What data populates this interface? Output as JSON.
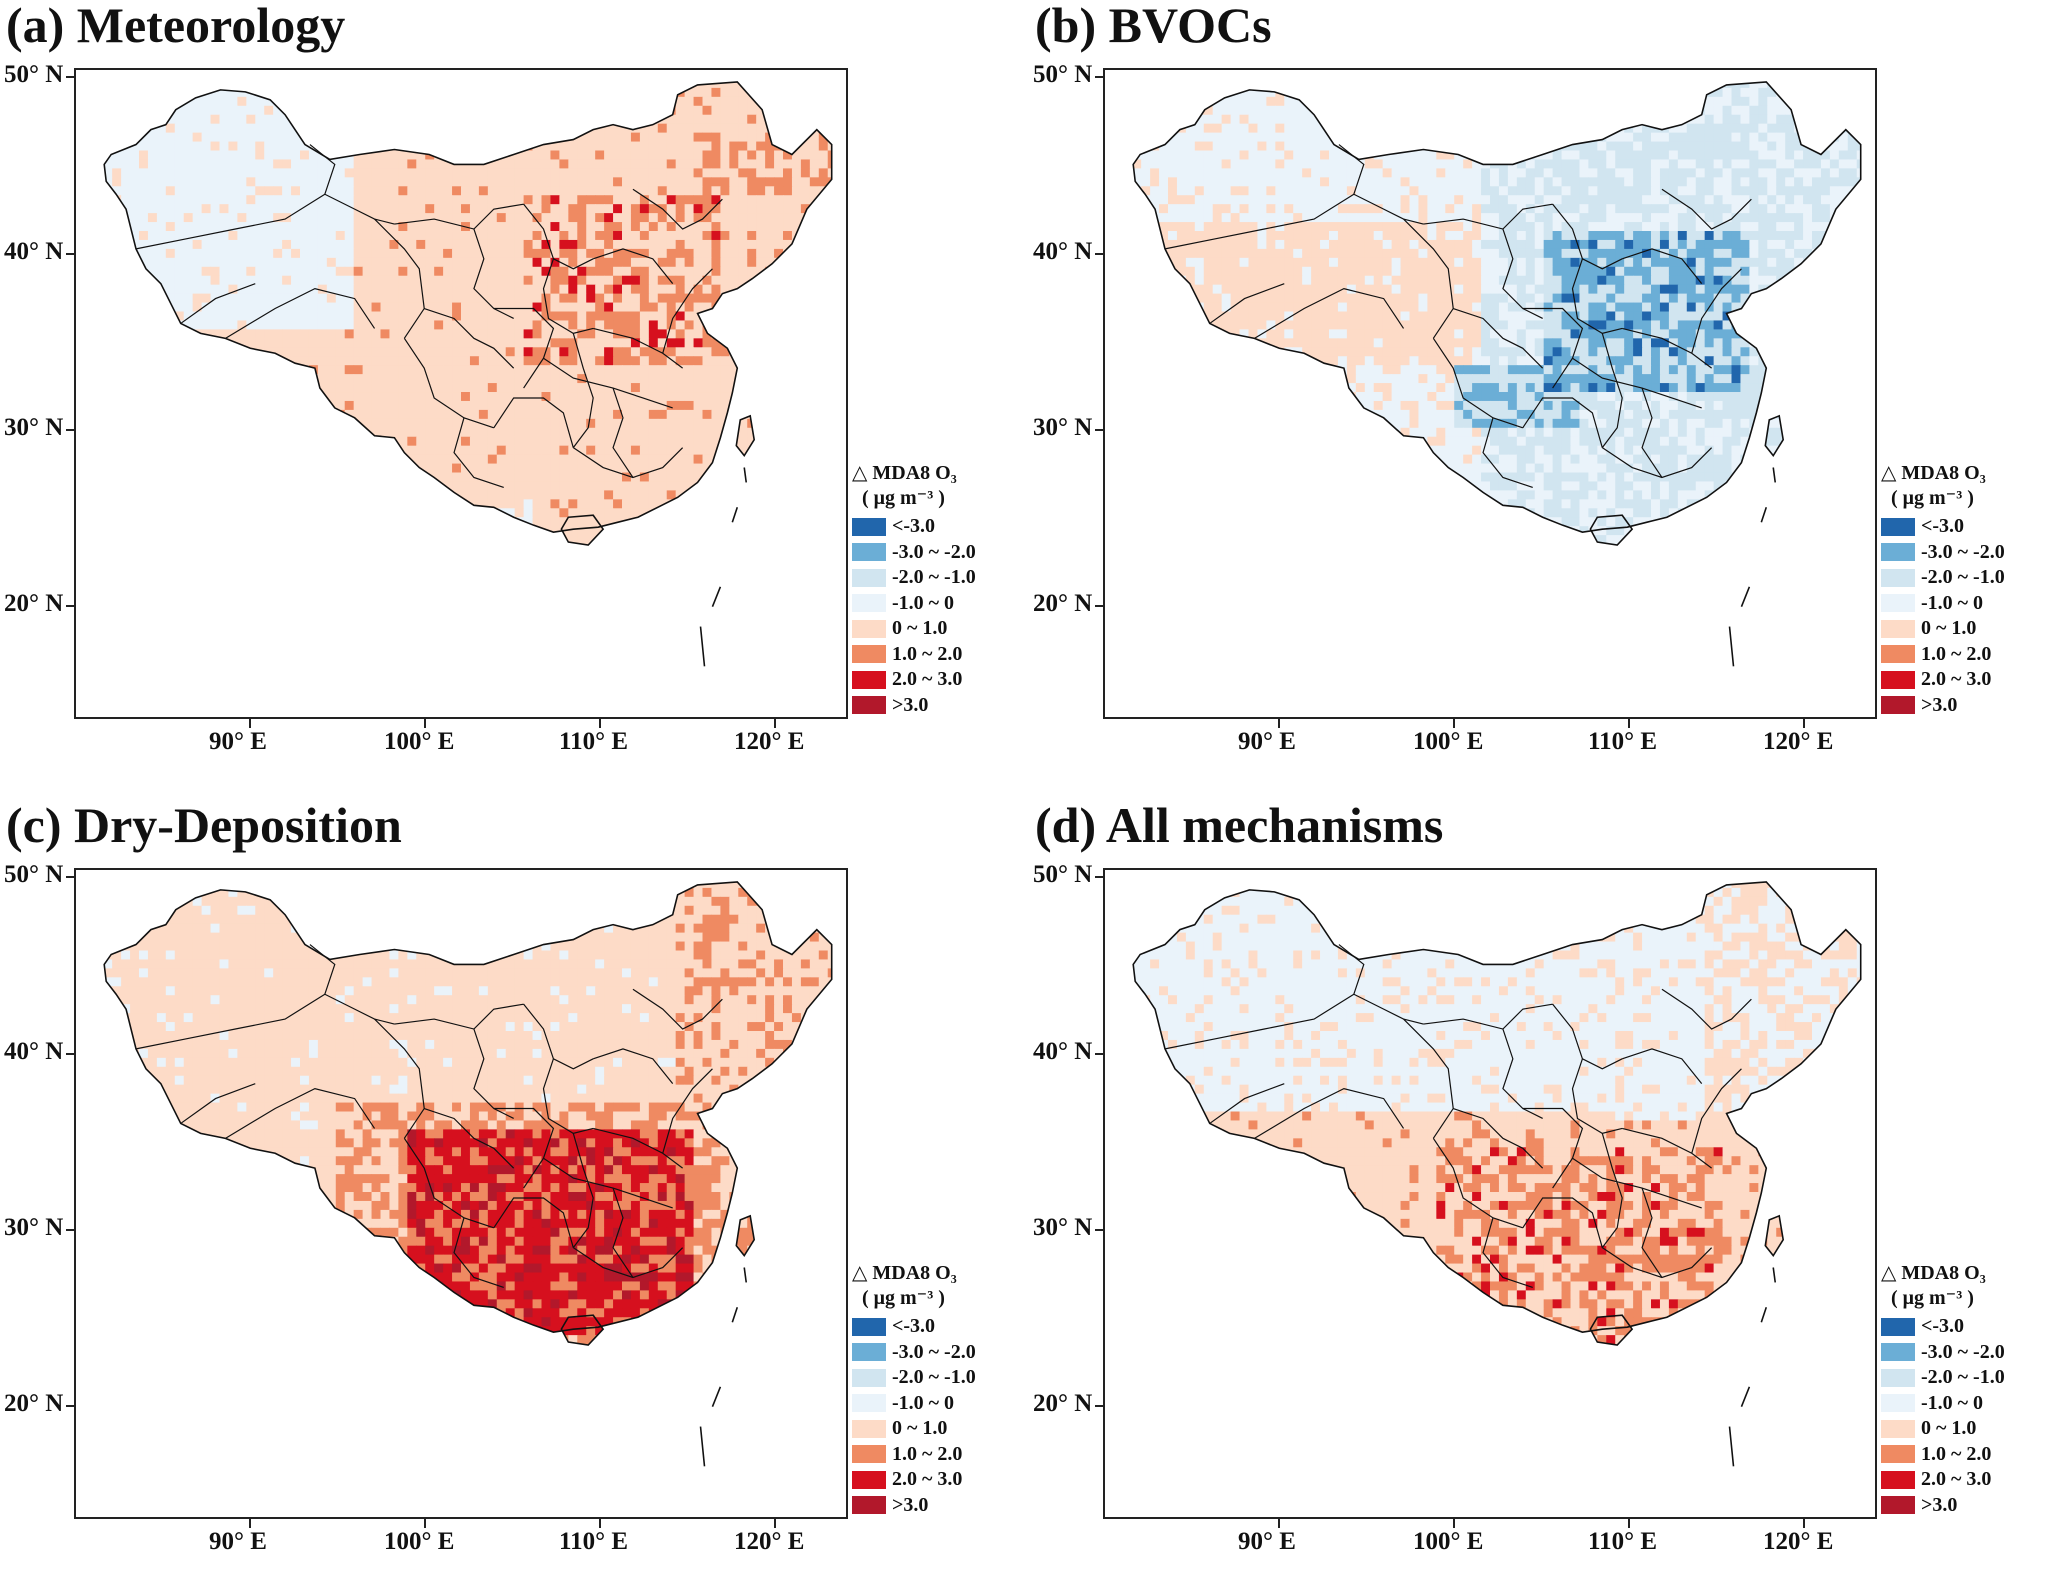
{
  "panels": [
    {
      "title": "(a) Meteorology",
      "pattern": "meteorology"
    },
    {
      "title": "(b) BVOCs",
      "pattern": "bvocs"
    },
    {
      "title": "(c) Dry-Deposition",
      "pattern": "drydep"
    },
    {
      "title": "(d) All mechanisms",
      "pattern": "all"
    }
  ],
  "axes": {
    "lat_labels": [
      "50° N",
      "40° N",
      "30° N",
      "20° N"
    ],
    "lon_labels": [
      "90° E",
      "100° E",
      "110° E",
      "120° E"
    ]
  },
  "legend": {
    "title": "△ MDA8 O₃",
    "unit": "( μg m⁻³ )",
    "items": [
      {
        "label": "<-3.0",
        "color": "#2166ac"
      },
      {
        "label": "-3.0 ~ -2.0",
        "color": "#6baed6"
      },
      {
        "label": "-2.0 ~ -1.0",
        "color": "#d1e5f0"
      },
      {
        "label": "-1.0 ~ 0",
        "color": "#eaf3fa"
      },
      {
        "label": "0 ~ 1.0",
        "color": "#fddbc7"
      },
      {
        "label": "1.0 ~ 2.0",
        "color": "#ef8a62"
      },
      {
        "label": "2.0 ~ 3.0",
        "color": "#d6101e"
      },
      {
        "label": ">3.0",
        "color": "#b2182b"
      }
    ]
  }
}
